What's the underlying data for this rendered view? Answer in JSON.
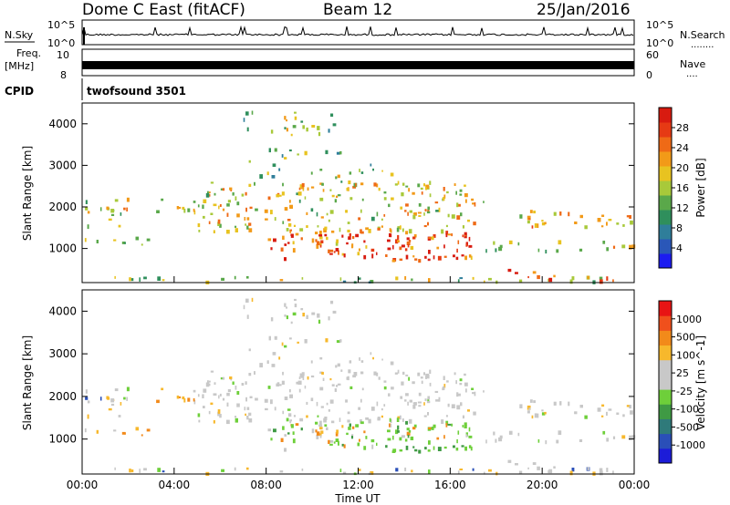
{
  "header": {
    "radar": "Dome C East (fitACF)",
    "beam": "Beam 12",
    "date": "25/Jan/2016"
  },
  "top_panels": {
    "nsky_label": "N.Sky",
    "nsearch_label": "N.Search",
    "nsearch_dots": "........",
    "scale_high": "10^5",
    "scale_low": "10^0",
    "freq_label_1": "Freq.",
    "freq_label_2": "[MHz]",
    "freq_tick_high": "10",
    "freq_tick_low": "8",
    "nave_label": "Nave",
    "nave_dots": "....",
    "nave_tick_high": "60",
    "nave_tick_low": "0",
    "cpid_label": "CPID",
    "cpid_value": "twofsound 3501"
  },
  "chart_data": [
    {
      "type": "heatmap",
      "name": "power",
      "ylabel": "Slant Range [km]",
      "xlabel": "",
      "yticks": [
        1000,
        2000,
        3000,
        4000
      ],
      "ylim": [
        180,
        4500
      ],
      "xlim": [
        0,
        24
      ],
      "colorbar_label": "Power [dB]",
      "colorbar_ticks": [
        4,
        8,
        12,
        16,
        20,
        24,
        28
      ],
      "colorbar_range": [
        0,
        32
      ],
      "colors": [
        "#1c1cf0",
        "#2a57b8",
        "#2f7e9a",
        "#2f8f5c",
        "#5aa84a",
        "#a8c93a",
        "#e8c320",
        "#f29a18",
        "#ef6a16",
        "#e63a14",
        "#d81b10"
      ]
    },
    {
      "type": "heatmap",
      "name": "velocity",
      "ylabel": "Slant Range [km]",
      "xlabel": "Time UT",
      "yticks": [
        1000,
        2000,
        3000,
        4000
      ],
      "ylim": [
        180,
        4500
      ],
      "xticks": [
        "00:00",
        "04:00",
        "08:00",
        "12:00",
        "16:00",
        "20:00",
        "00:00"
      ],
      "xlim": [
        0,
        24
      ],
      "colorbar_label": "Velocity [m s^-1]",
      "colorbar_ticks": [
        "1000",
        "500",
        "100",
        "25",
        "-25",
        "-100",
        "-500",
        "-1000"
      ],
      "colors": [
        "#e81414",
        "#f0501c",
        "#f28a1a",
        "#f7b82c",
        "#c8c8c8",
        "#c8c8c8",
        "#6ecf3a",
        "#3f9a44",
        "#2f7a7a",
        "#2a4fb8",
        "#1c1cd8"
      ]
    }
  ],
  "axis_title": "Time UT"
}
